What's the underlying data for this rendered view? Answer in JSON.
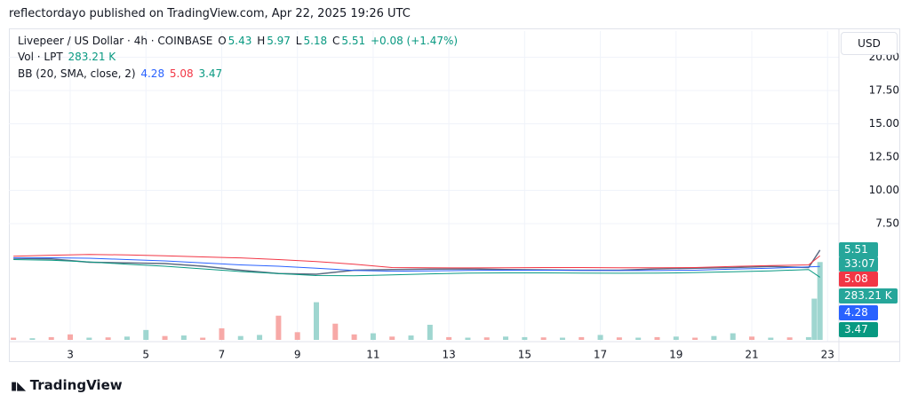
{
  "header": {
    "published": "reflectordayo published on TradingView.com, Apr 22, 2025 19:26 UTC"
  },
  "legend": {
    "symbol": "Livepeer / US Dollar · 4h · COINBASE",
    "ohlc": [
      {
        "key": "O",
        "value": "5.43"
      },
      {
        "key": "H",
        "value": "5.97"
      },
      {
        "key": "L",
        "value": "5.18"
      },
      {
        "key": "C",
        "value": "5.51"
      }
    ],
    "change": "+0.08 (+1.47%)",
    "volume_label": "Vol · LPT",
    "bb_label": "BB (20, SMA, close, 2)"
  },
  "price_axis": {
    "currency": "USD",
    "countdown": "33:07"
  },
  "footer": {
    "brand": "TradingView"
  },
  "chart_data": [
    {
      "type": "line",
      "x": [
        1.5,
        2.5,
        3.5,
        4.5,
        5.5,
        6.5,
        7.5,
        8.5,
        9.5,
        10.5,
        11.5,
        12.5,
        13.5,
        14.5,
        15.5,
        16.5,
        17.5,
        18.5,
        19.5,
        20.5,
        21.5,
        22.5,
        22.8
      ],
      "series": [
        {
          "name": "C",
          "color": "#5d6b82",
          "values": [
            4.9,
            4.85,
            4.6,
            4.55,
            4.5,
            4.3,
            4.0,
            3.75,
            3.7,
            4.0,
            4.05,
            4.08,
            4.1,
            4.05,
            4.02,
            4.0,
            4.0,
            4.1,
            4.15,
            4.2,
            4.28,
            4.2,
            5.51
          ]
        },
        {
          "name": "BB upper",
          "color": "#f23645",
          "values": [
            5.05,
            5.12,
            5.18,
            5.15,
            5.08,
            5.0,
            4.92,
            4.8,
            4.65,
            4.45,
            4.2,
            4.18,
            4.17,
            4.18,
            4.2,
            4.2,
            4.18,
            4.18,
            4.2,
            4.28,
            4.35,
            4.4,
            5.08
          ]
        },
        {
          "name": "BB basis",
          "color": "#2962ff",
          "values": [
            4.92,
            4.93,
            4.9,
            4.8,
            4.7,
            4.55,
            4.4,
            4.3,
            4.15,
            3.98,
            3.92,
            3.95,
            3.98,
            4.0,
            4.0,
            3.98,
            3.97,
            3.97,
            4.0,
            4.08,
            4.15,
            4.25,
            4.28
          ]
        },
        {
          "name": "BB lower",
          "color": "#089981",
          "values": [
            4.8,
            4.75,
            4.62,
            4.45,
            4.3,
            4.1,
            3.9,
            3.75,
            3.6,
            3.58,
            3.65,
            3.72,
            3.78,
            3.8,
            3.8,
            3.78,
            3.77,
            3.78,
            3.82,
            3.88,
            3.95,
            4.05,
            3.47
          ]
        }
      ],
      "xlim": [
        1.38,
        23.3
      ],
      "xticks": [
        3,
        5,
        7,
        9,
        11,
        13,
        15,
        17,
        19,
        21,
        23
      ],
      "ylim": [
        -1.37,
        21.97
      ],
      "yticks": [
        {
          "value": 7.5,
          "label": "7.50"
        },
        {
          "value": 10,
          "label": "10.00"
        },
        {
          "value": 12.5,
          "label": "12.50"
        },
        {
          "value": 15,
          "label": "15.00"
        },
        {
          "value": 17.5,
          "label": "17.50"
        },
        {
          "value": 20,
          "label": "20.00"
        }
      ],
      "grid": true
    },
    {
      "type": "bar",
      "x": [
        1.5,
        2,
        2.5,
        3,
        3.5,
        4,
        4.5,
        5,
        5.5,
        6,
        6.5,
        7,
        7.5,
        8,
        8.5,
        9,
        9.5,
        10,
        10.5,
        11,
        11.5,
        12,
        12.5,
        13,
        13.5,
        14,
        14.5,
        15,
        15.5,
        16,
        16.5,
        17,
        17.5,
        18,
        18.5,
        19,
        19.5,
        20,
        20.5,
        21,
        21.5,
        22,
        22.5,
        22.65,
        22.8
      ],
      "values": [
        8,
        6,
        10,
        20,
        8,
        9,
        12,
        36,
        14,
        16,
        8,
        42,
        14,
        18,
        88,
        28,
        137,
        59,
        20,
        24,
        12,
        16,
        55,
        10,
        8,
        9,
        12,
        10,
        9,
        8,
        10,
        18,
        9,
        8,
        10,
        12,
        8,
        14,
        24,
        12,
        8,
        9,
        10,
        150,
        283.21
      ],
      "value_labels": {
        "44": "283.21 K"
      },
      "colors": [
        "#f7a9a7",
        "#9fd6d0",
        "#f7a9a7",
        "#f7a9a7",
        "#9fd6d0",
        "#f7a9a7",
        "#9fd6d0",
        "#9fd6d0",
        "#f7a9a7",
        "#9fd6d0",
        "#f7a9a7",
        "#f7a9a7",
        "#9fd6d0",
        "#9fd6d0",
        "#f7a9a7",
        "#f7a9a7",
        "#9fd6d0",
        "#f7a9a7",
        "#f7a9a7",
        "#9fd6d0",
        "#f7a9a7",
        "#9fd6d0",
        "#9fd6d0",
        "#f7a9a7",
        "#9fd6d0",
        "#f7a9a7",
        "#9fd6d0",
        "#9fd6d0",
        "#f7a9a7",
        "#9fd6d0",
        "#f7a9a7",
        "#9fd6d0",
        "#f7a9a7",
        "#9fd6d0",
        "#f7a9a7",
        "#9fd6d0",
        "#f7a9a7",
        "#9fd6d0",
        "#9fd6d0",
        "#f7a9a7",
        "#9fd6d0",
        "#f7a9a7",
        "#9fd6d0",
        "#9fd6d0",
        "#9fd6d0"
      ],
      "y2lim": [
        0,
        1130
      ]
    }
  ]
}
